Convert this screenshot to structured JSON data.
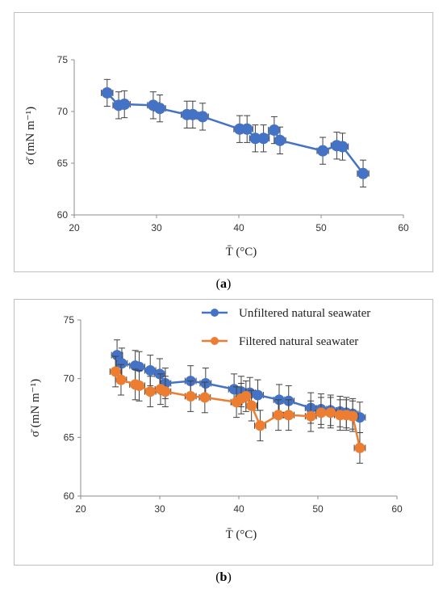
{
  "panels": [
    {
      "label_open": "(",
      "label_letter": "a",
      "label_close": ")",
      "chart_data": {
        "type": "scatter",
        "xlabel": "T̄ (°C)",
        "ylabel": "σ̄ (mN m⁻¹)",
        "xlim": [
          20,
          60
        ],
        "ylim": [
          60,
          75
        ],
        "xticks": [
          20,
          30,
          40,
          50,
          60
        ],
        "yticks": [
          60,
          65,
          70,
          75
        ],
        "grid": false,
        "legend": "none",
        "series": [
          {
            "color": "#4472C4",
            "x": [
              24.0,
              25.4,
              26.1,
              29.6,
              30.4,
              33.7,
              34.4,
              35.6,
              40.1,
              41.0,
              42.0,
              43.0,
              44.3,
              45.0,
              50.2,
              51.9,
              52.6,
              55.1
            ],
            "y": [
              71.8,
              70.6,
              70.7,
              70.6,
              70.3,
              69.7,
              69.7,
              69.5,
              68.3,
              68.3,
              67.4,
              67.4,
              68.2,
              67.2,
              66.2,
              66.7,
              66.6,
              64.0
            ],
            "yerr": 1.3,
            "xerr": 0.7
          }
        ]
      }
    },
    {
      "label_open": "(",
      "label_letter": "b",
      "label_close": ")",
      "chart_data": {
        "type": "scatter",
        "xlabel": "T̄ (°C)",
        "ylabel": "σ̄ (mN m⁻¹)",
        "xlim": [
          20,
          60
        ],
        "ylim": [
          60,
          75
        ],
        "xticks": [
          20,
          30,
          40,
          50,
          60
        ],
        "yticks": [
          60,
          65,
          70,
          75
        ],
        "grid": false,
        "legend": "top-right",
        "series": [
          {
            "name": "Unfiltered natural seawater",
            "color": "#4472C4",
            "x": [
              24.6,
              25.2,
              26.9,
              27.4,
              28.8,
              30.0,
              30.7,
              33.9,
              35.8,
              39.4,
              40.3,
              41.4,
              42.4,
              45.1,
              46.3,
              49.1,
              50.4,
              51.6,
              52.8,
              53.6,
              54.4,
              55.3
            ],
            "y": [
              72.0,
              71.3,
              71.1,
              71.0,
              70.7,
              70.4,
              69.6,
              69.8,
              69.6,
              69.1,
              68.9,
              68.8,
              68.6,
              68.2,
              68.1,
              67.5,
              67.4,
              67.3,
              67.2,
              67.1,
              67.0,
              66.7
            ],
            "yerr": 1.3,
            "xerr": 0.7
          },
          {
            "name": "Filtered natural seawater",
            "color": "#ED7D31",
            "x": [
              24.4,
              25.1,
              26.9,
              27.4,
              28.8,
              30.1,
              30.7,
              33.9,
              35.7,
              39.7,
              40.3,
              40.9,
              41.6,
              42.7,
              45.0,
              46.3,
              49.1,
              50.4,
              51.6,
              52.8,
              53.6,
              54.4,
              55.3
            ],
            "y": [
              70.6,
              69.9,
              69.5,
              69.4,
              68.9,
              69.1,
              68.9,
              68.5,
              68.4,
              68.0,
              68.3,
              68.5,
              67.7,
              66.0,
              66.9,
              66.9,
              66.8,
              67.1,
              67.1,
              66.9,
              66.9,
              66.8,
              64.1
            ],
            "yerr": 1.3,
            "xerr": 0.7
          }
        ]
      }
    }
  ]
}
